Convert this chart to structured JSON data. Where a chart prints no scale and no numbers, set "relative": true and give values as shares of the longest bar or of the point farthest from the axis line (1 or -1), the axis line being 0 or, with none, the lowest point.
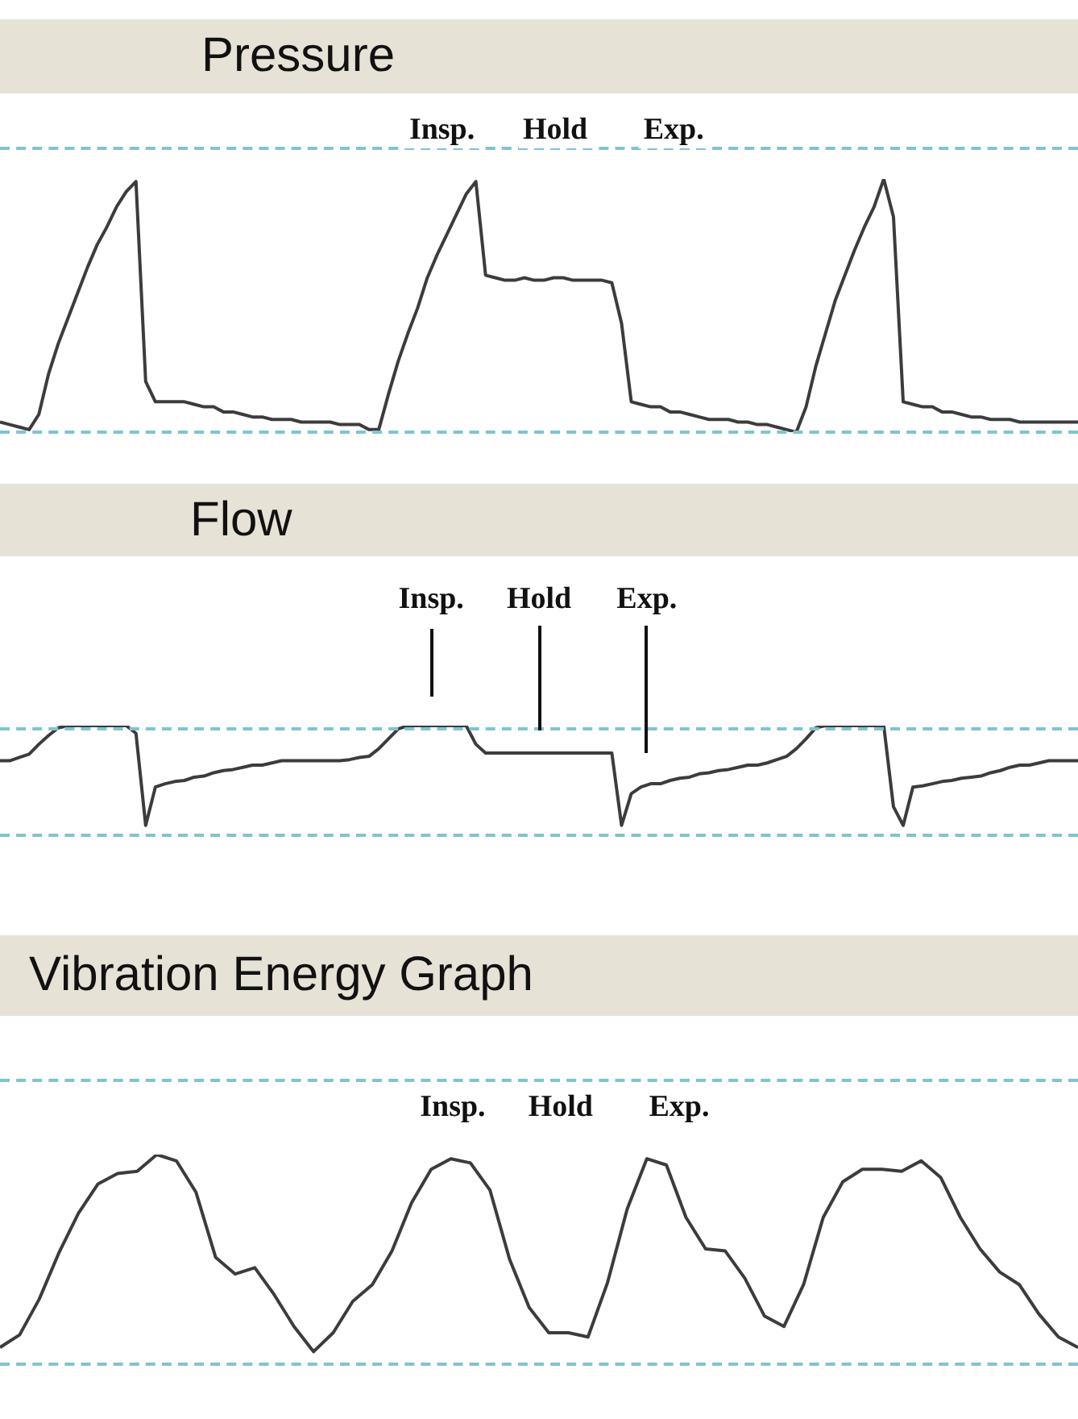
{
  "chart_data": [
    {
      "type": "line",
      "title": "Pressure",
      "relative": true,
      "annotations": [
        "Insp.",
        "Hold",
        "Exp."
      ],
      "categories": [
        null,
        null,
        null,
        null,
        null,
        null,
        null,
        null,
        null,
        null,
        null,
        null,
        null,
        null,
        null,
        null,
        null,
        null,
        null,
        null,
        null,
        null,
        null,
        null,
        null,
        null,
        null,
        null,
        null,
        null,
        null,
        null,
        null,
        null,
        null,
        null,
        null,
        null,
        null,
        null,
        null,
        null,
        null,
        null,
        null,
        null,
        null,
        null,
        null,
        null,
        null,
        null,
        null,
        null,
        null,
        null,
        null,
        null,
        null,
        null,
        null,
        null,
        null,
        null,
        null,
        null,
        null,
        null,
        null,
        null,
        null,
        null,
        null,
        null,
        null,
        null,
        null,
        null,
        null,
        null,
        null,
        null,
        null,
        null,
        null,
        null,
        null,
        null,
        null,
        null,
        null,
        null,
        null,
        null,
        null,
        null,
        null,
        null,
        null,
        null,
        null,
        null,
        null,
        null,
        null,
        null,
        null,
        null,
        null,
        null,
        null,
        null
      ],
      "series": [
        {
          "color": "#3c3c3c",
          "values": [
            0.04,
            0.03,
            0.02,
            0.01,
            0.07,
            0.23,
            0.35,
            0.45,
            0.55,
            0.65,
            0.74,
            0.81,
            0.89,
            0.95,
            0.99,
            0.2,
            0.12,
            0.12,
            0.12,
            0.12,
            0.11,
            0.1,
            0.1,
            0.08,
            0.08,
            0.07,
            0.06,
            0.06,
            0.05,
            0.05,
            0.05,
            0.04,
            0.04,
            0.04,
            0.04,
            0.03,
            0.03,
            0.03,
            0.01,
            0.01,
            0.15,
            0.28,
            0.39,
            0.49,
            0.61,
            0.7,
            0.78,
            0.86,
            0.94,
            0.99,
            0.62,
            0.61,
            0.6,
            0.6,
            0.61,
            0.6,
            0.6,
            0.61,
            0.61,
            0.6,
            0.6,
            0.6,
            0.6,
            0.59,
            0.43,
            0.12,
            0.11,
            0.1,
            0.1,
            0.08,
            0.08,
            0.07,
            0.06,
            0.05,
            0.05,
            0.05,
            0.04,
            0.04,
            0.03,
            0.03,
            0.02,
            0.01,
            0,
            0.1,
            0.26,
            0.39,
            0.52,
            0.62,
            0.72,
            0.81,
            0.89,
            1,
            0.85,
            0.12,
            0.11,
            0.1,
            0.1,
            0.08,
            0.08,
            0.07,
            0.06,
            0.06,
            0.05,
            0.05,
            0.05,
            0.04,
            0.04,
            0.04,
            0.04,
            0.04,
            0.04,
            0.04
          ]
        }
      ],
      "line_style": "solid"
    },
    {
      "type": "line",
      "title": "Flow",
      "relative": true,
      "annotations": [
        "Insp.",
        "Hold",
        "Exp."
      ],
      "categories": [
        null,
        null,
        null,
        null,
        null,
        null,
        null,
        null,
        null,
        null,
        null,
        null,
        null,
        null,
        null,
        null,
        null,
        null,
        null,
        null,
        null,
        null,
        null,
        null,
        null,
        null,
        null,
        null,
        null,
        null,
        null,
        null,
        null,
        null,
        null,
        null,
        null,
        null,
        null,
        null,
        null,
        null,
        null,
        null,
        null,
        null,
        null,
        null,
        null,
        null,
        null,
        null,
        null,
        null,
        null,
        null,
        null,
        null,
        null,
        null,
        null,
        null,
        null,
        null,
        null,
        null,
        null,
        null,
        null,
        null,
        null,
        null,
        null,
        null,
        null,
        null,
        null,
        null,
        null,
        null,
        null,
        null,
        null,
        null,
        null,
        null,
        null,
        null,
        null,
        null,
        null,
        null,
        null,
        null,
        null,
        null,
        null,
        null,
        null,
        null,
        null,
        null,
        null,
        null,
        null,
        null,
        null,
        null,
        null,
        null,
        null,
        null
      ],
      "series": [
        {
          "color": "#3c3c3c",
          "values": [
            0.68,
            0.68,
            0.71,
            0.74,
            0.83,
            0.91,
            0.98,
            1,
            1,
            1,
            1,
            1,
            1,
            1,
            0.93,
            0.09,
            0.44,
            0.47,
            0.49,
            0.5,
            0.53,
            0.54,
            0.57,
            0.59,
            0.6,
            0.62,
            0.64,
            0.64,
            0.66,
            0.68,
            0.68,
            0.68,
            0.68,
            0.68,
            0.68,
            0.68,
            0.69,
            0.71,
            0.72,
            0.79,
            0.88,
            0.97,
            1,
            1,
            1,
            1,
            1,
            1,
            1,
            0.83,
            0.75,
            0.75,
            0.75,
            0.75,
            0.75,
            0.75,
            0.75,
            0.75,
            0.75,
            0.75,
            0.75,
            0.75,
            0.75,
            0.75,
            0.09,
            0.38,
            0.44,
            0.47,
            0.47,
            0.5,
            0.52,
            0.53,
            0.56,
            0.57,
            0.59,
            0.6,
            0.62,
            0.64,
            0.64,
            0.66,
            0.69,
            0.72,
            0.79,
            0.88,
            0.98,
            1,
            1,
            1,
            1,
            1,
            1,
            1,
            0.26,
            0.09,
            0.44,
            0.45,
            0.47,
            0.49,
            0.5,
            0.52,
            0.53,
            0.54,
            0.57,
            0.59,
            0.62,
            0.64,
            0.64,
            0.66,
            0.68,
            0.68,
            0.68,
            0.68
          ]
        }
      ],
      "line_style": "solid"
    },
    {
      "type": "line",
      "title": "Vibration Energy Graph",
      "relative": true,
      "annotations": [
        "Insp.",
        "Hold",
        "Exp."
      ],
      "categories": [
        null,
        null,
        null,
        null,
        null,
        null,
        null,
        null,
        null,
        null,
        null,
        null,
        null,
        null,
        null,
        null,
        null,
        null,
        null,
        null,
        null,
        null,
        null,
        null,
        null,
        null,
        null,
        null,
        null,
        null,
        null,
        null,
        null,
        null,
        null,
        null,
        null,
        null,
        null,
        null,
        null,
        null,
        null,
        null,
        null,
        null,
        null,
        null,
        null,
        null,
        null,
        null,
        null,
        null,
        null,
        null
      ],
      "series": [
        {
          "color": "#3c3c3c",
          "values": [
            0.08,
            0.14,
            0.31,
            0.53,
            0.72,
            0.86,
            0.91,
            0.92,
            1,
            0.97,
            0.82,
            0.51,
            0.43,
            0.46,
            0.33,
            0.18,
            0.06,
            0.15,
            0.3,
            0.38,
            0.54,
            0.77,
            0.93,
            0.98,
            0.96,
            0.83,
            0.5,
            0.27,
            0.15,
            0.15,
            0.13,
            0.39,
            0.74,
            0.98,
            0.95,
            0.7,
            0.55,
            0.54,
            0.41,
            0.23,
            0.18,
            0.38,
            0.7,
            0.87,
            0.93,
            0.93,
            0.92,
            0.97,
            0.89,
            0.7,
            0.55,
            0.44,
            0.38,
            0.24,
            0.13,
            0.08
          ]
        }
      ],
      "line_style": "solid"
    }
  ]
}
